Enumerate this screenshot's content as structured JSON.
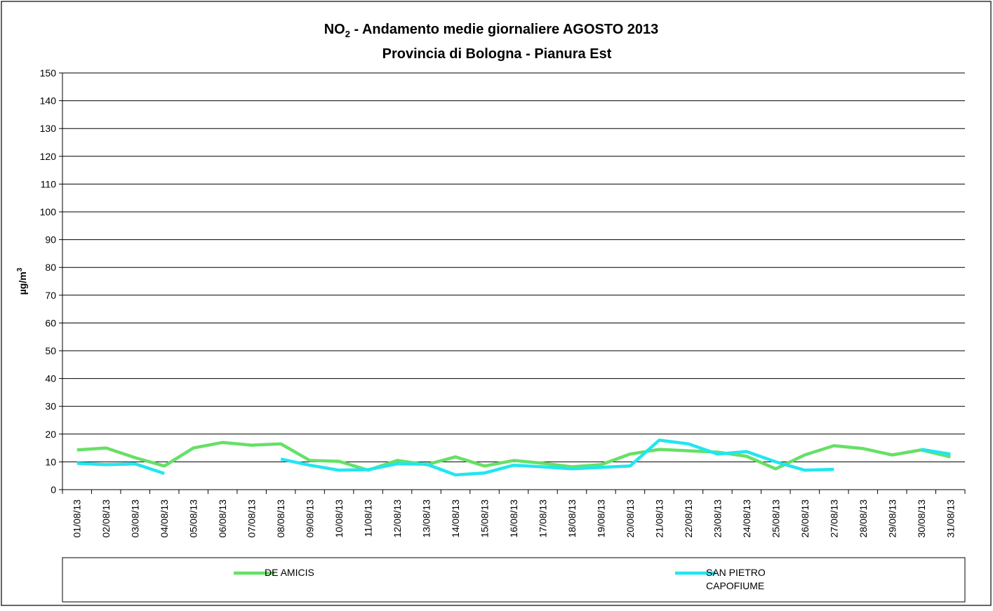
{
  "chart_data": {
    "type": "line",
    "title": [
      "NO",
      "2",
      " - Andamento medie giornaliere AGOSTO 2013"
    ],
    "subtitle": "Provincia di Bologna - Pianura Est",
    "ylabel": [
      "µg/m",
      "3"
    ],
    "categories": [
      "01/08/13",
      "02/08/13",
      "03/08/13",
      "04/08/13",
      "05/08/13",
      "06/08/13",
      "07/08/13",
      "08/08/13",
      "09/08/13",
      "10/08/13",
      "11/08/13",
      "12/08/13",
      "13/08/13",
      "14/08/13",
      "15/08/13",
      "16/08/13",
      "17/08/13",
      "18/08/13",
      "19/08/13",
      "20/08/13",
      "21/08/13",
      "22/08/13",
      "23/08/13",
      "24/08/13",
      "25/08/13",
      "26/08/13",
      "27/08/13",
      "28/08/13",
      "29/08/13",
      "30/08/13",
      "31/08/13"
    ],
    "series": [
      {
        "name": "DE AMICIS",
        "color": "#66e066",
        "values": [
          14.3,
          15,
          11.5,
          8.5,
          15,
          17,
          16,
          16.5,
          10.5,
          10.2,
          7,
          10.5,
          9,
          11.8,
          8.5,
          10.5,
          9.5,
          8.2,
          9,
          12.8,
          14.5,
          14,
          13.5,
          12,
          7.5,
          12.5,
          15.8,
          14.8,
          12.5,
          14.3,
          11.8
        ]
      },
      {
        "name": "SAN PIETRO CAPOFIUME",
        "color": "#22e6f0",
        "values": [
          9.5,
          9,
          9.3,
          5.8,
          null,
          null,
          null,
          11,
          8.8,
          7,
          7.2,
          9.3,
          9.2,
          5.3,
          6,
          8.8,
          8.2,
          7.5,
          8,
          8.5,
          17.8,
          16.5,
          12.8,
          13.7,
          10,
          7,
          7.3,
          null,
          null,
          14.5,
          12.8
        ]
      }
    ],
    "ylim": [
      0,
      150
    ],
    "yticks": [
      0,
      10,
      20,
      30,
      40,
      50,
      60,
      70,
      80,
      90,
      100,
      110,
      120,
      130,
      140,
      150
    ],
    "grid": true
  }
}
